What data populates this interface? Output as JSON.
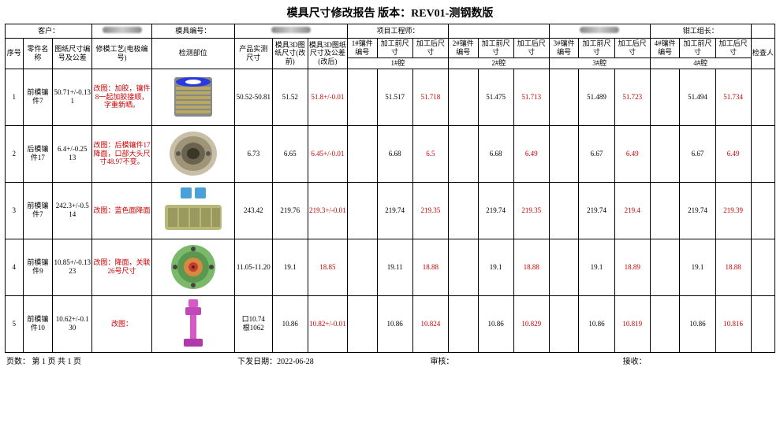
{
  "title": "模具尺寸修改报告    版本：REV01-测钢数版",
  "header": {
    "customer_label": "客户：",
    "mold_no_label": "模具编号：",
    "engineer_label": "项目工程师：",
    "fitter_label": "钳工组长："
  },
  "cols": {
    "seq": "序号",
    "name": "零件名称",
    "draw": "图纸尺寸编号及公差",
    "proc": "修模工艺(电极编号)",
    "det": "检测部位",
    "act": "产品实测尺寸",
    "m3d_pre": "模具3D图纸尺寸(改前)",
    "m3d_tol": "模具3D图纸尺寸及公差(改后)",
    "sn1": "1#镶件编号",
    "pre": "加工前尺寸",
    "post": "加工后尺寸",
    "sn2": "2#镶件编号",
    "sn3": "3#镶件编号",
    "sn4": "4#镶件编号",
    "cav1": "1#腔",
    "cav2": "2#腔",
    "cav3": "3#腔",
    "cav4": "4#腔",
    "ins": "检查人"
  },
  "rows": [
    {
      "seq": "1",
      "name": "前模镶件7",
      "draw": "50.71+/-0.13\n1",
      "proc": "改图：加胶，镶件8一起加胶接顺，字重新晒。",
      "act": "50.52-50.81",
      "m3d": "51.52",
      "tol": "51.8+/-0.01",
      "c1p": "51.517",
      "c1a": "51.718",
      "c2p": "51.475",
      "c2a": "51.713",
      "c3p": "51.489",
      "c3a": "51.723",
      "c4p": "51.494",
      "c4a": "51.734",
      "icon": "coil"
    },
    {
      "seq": "2",
      "name": "后模镶件17",
      "draw": "6.4+/-0.25\n13",
      "proc": "改图：后模镶件17降面，口部大头尺寸48.97不变。",
      "act": "6.73",
      "m3d": "6.65",
      "tol": "6.45+/-0.01",
      "c1p": "6.68",
      "c1a": "6.5",
      "c2p": "6.68",
      "c2a": "6.49",
      "c3p": "6.67",
      "c3a": "6.49",
      "c4p": "6.67",
      "c4a": "6.49",
      "icon": "ring"
    },
    {
      "seq": "3",
      "name": "前模镶件7",
      "draw": "242.3+/-0.5\n14",
      "proc": "改图：蓝色面降面",
      "act": "243.42",
      "m3d": "219.76",
      "tol": "219.3+/-0.01",
      "c1p": "219.74",
      "c1a": "219.35",
      "c2p": "219.74",
      "c2a": "219.35",
      "c3p": "219.74",
      "c3a": "219.4",
      "c4p": "219.74",
      "c4a": "219.39",
      "icon": "block"
    },
    {
      "seq": "4",
      "name": "前模镶件9",
      "draw": "10.85+/-0.13\n23",
      "proc": "改图：降面，关联26号尺寸",
      "act": "11.05-11.20",
      "m3d": "19.1",
      "tol": "18.85",
      "c1p": "19.11",
      "c1a": "18.88",
      "c2p": "19.1",
      "c2a": "18.88",
      "c3p": "19.1",
      "c3a": "18.89",
      "c4p": "19.1",
      "c4a": "18.88",
      "icon": "gear"
    },
    {
      "seq": "5",
      "name": "前模镶件10",
      "draw": "10.62+/-0.1\n30",
      "proc": "改图：",
      "act": "口10.74\n根1062",
      "m3d": "10.86",
      "tol": "10.82+/-0.01",
      "c1p": "10.86",
      "c1a": "10.824",
      "c2p": "10.86",
      "c2a": "10.829",
      "c3p": "10.86",
      "c3a": "10.819",
      "c4p": "10.86",
      "c4a": "10.816",
      "icon": "pin"
    }
  ],
  "footer": {
    "page": "页数：  第 1 页 共 1 页",
    "date_label": "下发日期：",
    "date": "2022-06-28",
    "review": "审核：",
    "receive": "接收："
  },
  "colors": {
    "red": "#cc0000",
    "black": "#000000"
  }
}
